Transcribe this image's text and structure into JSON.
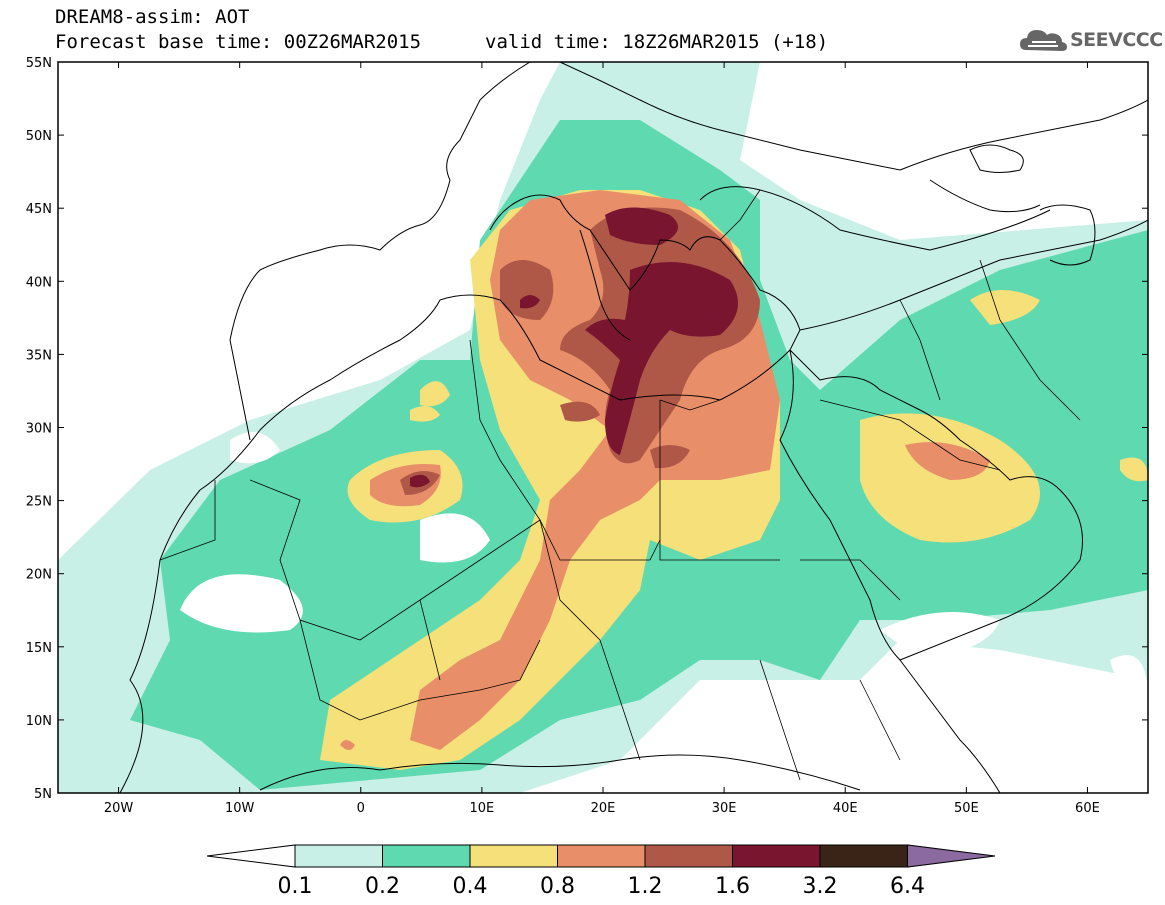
{
  "header": {
    "line1": "DREAM8-assim: AOT",
    "line2": "Forecast base time: 00Z26MAR2015",
    "valid": "valid time: 18Z26MAR2015 (+18)",
    "logo_text": "SEEVCCC"
  },
  "map": {
    "projection": "lat-lon",
    "lon_range": [
      -25,
      65
    ],
    "lat_range": [
      5,
      55
    ],
    "lat_labels": [
      "55N",
      "50N",
      "45N",
      "40N",
      "35N",
      "30N",
      "25N",
      "20N",
      "15N",
      "10N",
      "5N"
    ],
    "lon_labels": [
      "20W",
      "10W",
      "0",
      "10E",
      "20E",
      "30E",
      "40E",
      "50E",
      "60E"
    ]
  },
  "legend": {
    "levels": [
      "0.1",
      "0.2",
      "0.4",
      "0.8",
      "1.2",
      "1.6",
      "3.2",
      "6.4"
    ],
    "colors": [
      "#c8f0e6",
      "#5fd9b0",
      "#f5e07a",
      "#e88f6a",
      "#b05848",
      "#7a1530",
      "#3a2418",
      "#8a6aa0"
    ],
    "under_color": "#ffffff"
  }
}
